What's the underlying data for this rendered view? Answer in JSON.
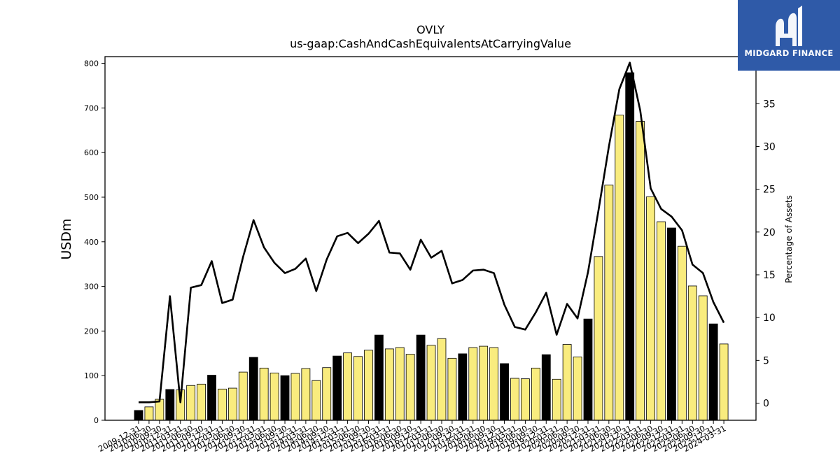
{
  "brand": {
    "name": "MIDGARD FINANCE"
  },
  "colors": {
    "bar_highlight": "#000000",
    "bar_default": "#f9ec7e",
    "bar_edge": "#000000",
    "line": "#000000",
    "logo_bg": "#2f5aa8"
  },
  "chart_data": {
    "type": "bar",
    "title": "OVLY",
    "subtitle": "us-gaap:CashAndCashEquivalentsAtCarryingValue",
    "ylabel": "USDm",
    "y2label": "Percentage of Assets",
    "ylim": [
      0,
      815
    ],
    "y2lim": [
      -2,
      40.5
    ],
    "yticks": [
      0,
      100,
      200,
      300,
      400,
      500,
      600,
      700,
      800
    ],
    "y2ticks": [
      0,
      5,
      10,
      15,
      20,
      25,
      30,
      35,
      40
    ],
    "categories": [
      "2009-12-31",
      "2010-06-30",
      "2010-09-30",
      "2010-12-31",
      "2011-03-31",
      "2011-06-30",
      "2011-09-30",
      "2011-12-31",
      "2012-03-31",
      "2012-06-30",
      "2012-09-30",
      "2012-12-31",
      "2013-03-31",
      "2013-06-30",
      "2013-09-30",
      "2013-12-31",
      "2014-03-31",
      "2014-06-30",
      "2014-09-30",
      "2014-12-31",
      "2015-03-31",
      "2015-06-30",
      "2015-09-30",
      "2015-12-31",
      "2016-03-31",
      "2016-06-30",
      "2016-09-30",
      "2016-12-31",
      "2017-03-31",
      "2017-06-30",
      "2017-09-30",
      "2017-12-31",
      "2018-03-31",
      "2018-06-30",
      "2018-09-30",
      "2018-12-31",
      "2019-03-31",
      "2019-06-30",
      "2019-09-30",
      "2019-12-31",
      "2020-03-31",
      "2020-06-30",
      "2020-09-30",
      "2020-12-31",
      "2021-03-31",
      "2021-06-30",
      "2021-09-30",
      "2021-12-31",
      "2022-03-31",
      "2022-06-30",
      "2022-09-30",
      "2022-12-31",
      "2023-03-31",
      "2023-06-30",
      "2023-09-30",
      "2023-12-31",
      "2024-03-31"
    ],
    "series": [
      {
        "type": "bar",
        "values": [
          22,
          30,
          47,
          69,
          68,
          78,
          81,
          101,
          70,
          72,
          108,
          141,
          117,
          106,
          100,
          105,
          116,
          89,
          118,
          144,
          151,
          143,
          157,
          191,
          160,
          163,
          148,
          191,
          168,
          183,
          139,
          149,
          163,
          166,
          163,
          127,
          94,
          93,
          117,
          147,
          92,
          170,
          142,
          227,
          367,
          527,
          684,
          779,
          670,
          501,
          445,
          431,
          390,
          301,
          279,
          216,
          171
        ],
        "highlight": [
          true,
          false,
          false,
          true,
          false,
          false,
          false,
          true,
          false,
          false,
          false,
          true,
          false,
          false,
          true,
          false,
          false,
          false,
          false,
          true,
          false,
          false,
          false,
          true,
          false,
          false,
          false,
          true,
          false,
          false,
          false,
          true,
          false,
          false,
          false,
          true,
          false,
          false,
          false,
          true,
          false,
          false,
          false,
          true,
          false,
          false,
          false,
          true,
          false,
          false,
          false,
          true,
          false,
          false,
          false,
          true,
          false
        ]
      },
      {
        "type": "line",
        "axis": "right",
        "values": [
          0.1,
          0.1,
          0.2,
          12.5,
          0.1,
          13.5,
          13.8,
          16.6,
          11.7,
          12.1,
          17.1,
          21.4,
          18.2,
          16.4,
          15.2,
          15.7,
          16.9,
          13.1,
          16.8,
          19.5,
          19.9,
          18.7,
          19.8,
          21.3,
          17.6,
          17.5,
          15.6,
          19.1,
          17.0,
          17.8,
          14.0,
          14.4,
          15.5,
          15.6,
          15.2,
          11.5,
          8.9,
          8.6,
          10.6,
          12.9,
          8.0,
          11.6,
          9.9,
          15.3,
          22.5,
          30.0,
          36.7,
          39.8,
          34.2,
          25.1,
          22.7,
          21.8,
          20.2,
          16.2,
          15.2,
          11.8,
          9.4
        ]
      }
    ]
  }
}
